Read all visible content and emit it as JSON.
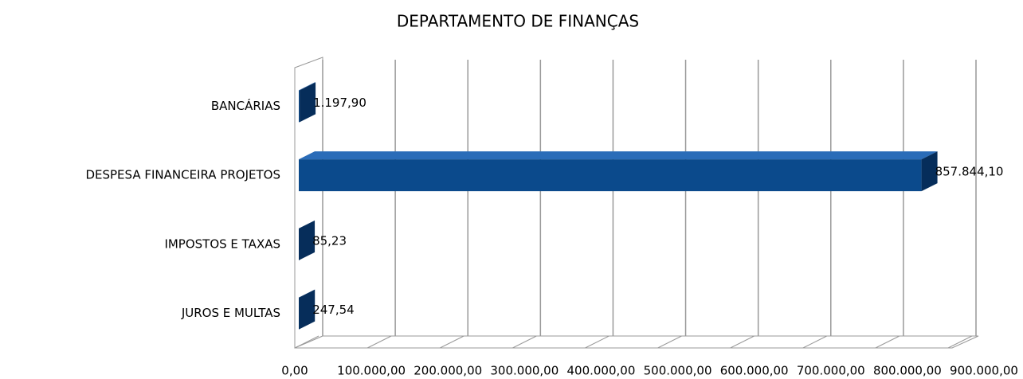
{
  "chart_data": {
    "type": "bar3d",
    "orientation": "horizontal",
    "title": "DEPARTAMENTO DE FINANÇAS",
    "categories": [
      "BANCÁRIAS",
      "DESPESA FINANCEIRA PROJETOS",
      "IMPOSTOS E TAXAS",
      "JUROS E MULTAS"
    ],
    "values": [
      1197.9,
      857844.1,
      85.23,
      247.54
    ],
    "value_labels": [
      "1.197,90",
      "857.844,10",
      "85,23",
      "247,54"
    ],
    "color": "#0b4a8c",
    "xlim": [
      0,
      900000
    ],
    "xticks": [
      {
        "value": 0,
        "label": "0,00"
      },
      {
        "value": 100000,
        "label": "100.000,00"
      },
      {
        "value": 200000,
        "label": "200.000,00"
      },
      {
        "value": 300000,
        "label": "300.000,00"
      },
      {
        "value": 400000,
        "label": "400.000,00"
      },
      {
        "value": 500000,
        "label": "500.000,00"
      },
      {
        "value": 600000,
        "label": "600.000,00"
      },
      {
        "value": 700000,
        "label": "700.000,00"
      },
      {
        "value": 800000,
        "label": "800.000,00"
      },
      {
        "value": 900000,
        "label": "900.000,00"
      }
    ],
    "grid": true
  }
}
